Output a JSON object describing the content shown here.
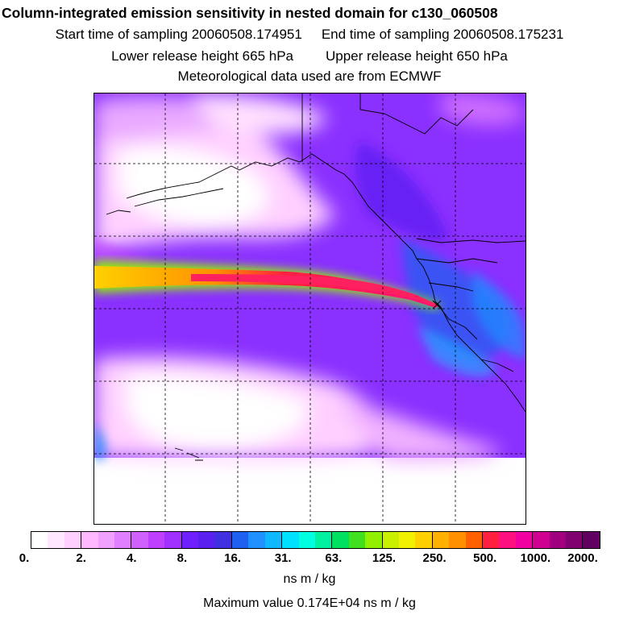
{
  "header": {
    "title": "Column-integrated emission sensitivity in nested domain for c130_060508",
    "start_time": "Start time of sampling 20060508.174951",
    "end_time": "End time of sampling 20060508.175231",
    "lower_height": "Lower release height  665 hPa",
    "upper_height": "Upper release height  650 hPa",
    "met_data": "Meteorological data used are from ECMWF"
  },
  "colorbar": {
    "colors": [
      "#ffffff",
      "#ffe8ff",
      "#ffd0ff",
      "#ffb8ff",
      "#f0a0ff",
      "#e080ff",
      "#d060ff",
      "#c040ff",
      "#a030ff",
      "#7020ff",
      "#5a20f0",
      "#4030e0",
      "#2060f0",
      "#2090ff",
      "#10b8ff",
      "#00e0ff",
      "#00ffe0",
      "#00f0a0",
      "#00e060",
      "#40e020",
      "#90f000",
      "#c8f000",
      "#f0f000",
      "#ffd000",
      "#ffb000",
      "#ff9000",
      "#ff6000",
      "#ff2040",
      "#ff1080",
      "#f000a0",
      "#d00090",
      "#a00080",
      "#800070",
      "#600060"
    ],
    "tick_labels": [
      "0.",
      "2.",
      "4.",
      "8.",
      "16.",
      "31.",
      "63.",
      "125.",
      "250.",
      "500.",
      "1000.",
      "2000."
    ]
  },
  "units": "ns m / kg",
  "max_value": "Maximum value  0.174E+04 ns m / kg"
}
